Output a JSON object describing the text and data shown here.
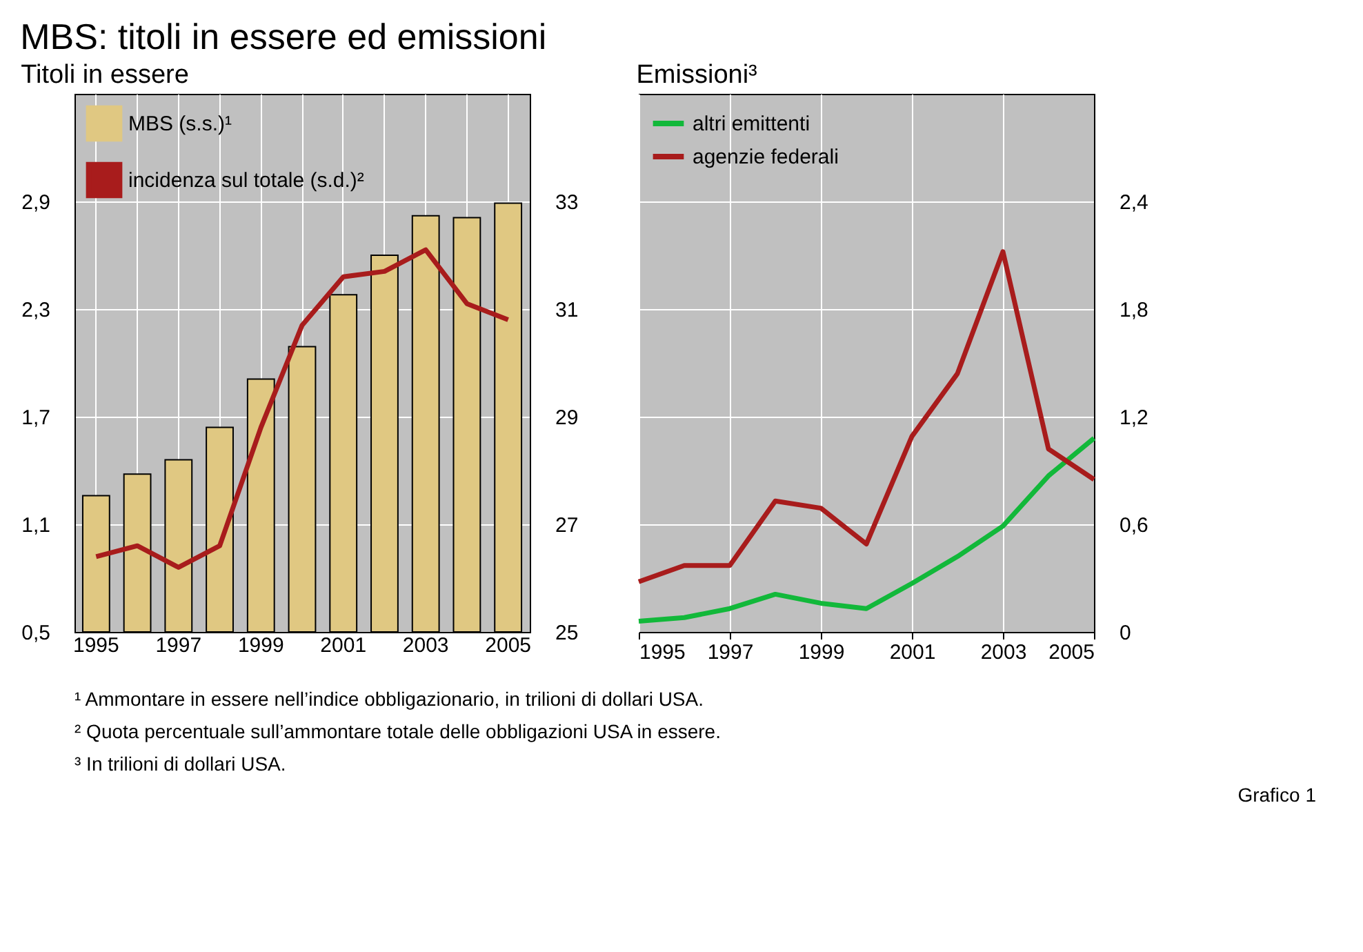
{
  "chart_data": [
    {
      "type": "bar",
      "title": "Titoli in essere",
      "categories": [
        "1995",
        null,
        "1997",
        null,
        "1999",
        null,
        "2001",
        null,
        "2003",
        null,
        "2005"
      ],
      "ylim": [
        0.5,
        3.5
      ],
      "yticks": [
        {
          "value": 0.5,
          "label": "0,5"
        },
        {
          "value": 1.1,
          "label": "1,1"
        },
        {
          "value": 1.7,
          "label": "1,7"
        },
        {
          "value": 2.3,
          "label": "2,3"
        },
        {
          "value": 2.9,
          "label": "2,9"
        }
      ],
      "y2lim": [
        25,
        35
      ],
      "y2ticks": [
        25,
        27,
        29,
        31,
        33
      ],
      "series": [
        {
          "name": "MBS (s.s.)¹",
          "color": "#e0c882",
          "values": [
            1.26,
            1.38,
            1.46,
            1.64,
            1.91,
            2.09,
            2.38,
            2.6,
            2.82,
            2.81,
            2.89
          ]
        },
        {
          "name": "incidenza sul totale (s.d.)²",
          "type": "line",
          "axis": "y2",
          "color": "#a81c1c",
          "values": [
            26.4,
            26.6,
            26.2,
            26.6,
            28.8,
            30.7,
            31.6,
            31.7,
            32.1,
            31.1,
            30.8
          ]
        }
      ],
      "grid": true,
      "legend": "top left"
    },
    {
      "type": "line",
      "title": "Emissioni³",
      "x": [
        1995,
        1996,
        1997,
        1998,
        1999,
        2000,
        2001,
        2002,
        2003,
        2004,
        2005
      ],
      "xlim": [
        1995,
        2005
      ],
      "xticks": [
        1995,
        1997,
        1999,
        2001,
        2003,
        2005
      ],
      "ylim": [
        0,
        3
      ],
      "yticks": [
        0,
        {
          "value": 0.6,
          "label": "0,6"
        },
        {
          "value": 1.2,
          "label": "1,2"
        },
        {
          "value": 1.8,
          "label": "1,8"
        },
        {
          "value": 2.4,
          "label": "2,4"
        }
      ],
      "series": [
        {
          "name": "altri emittenti",
          "color": "#12b83a",
          "values": [
            0.06,
            0.08,
            0.13,
            0.21,
            0.16,
            0.13,
            0.27,
            0.42,
            0.59,
            0.87,
            1.08
          ]
        },
        {
          "name": "agenzie federali",
          "color": "#a81c1c",
          "values": [
            0.28,
            0.37,
            0.37,
            0.73,
            0.69,
            0.49,
            1.09,
            1.44,
            2.12,
            1.02,
            0.85
          ]
        }
      ],
      "grid": true,
      "legend": "top left"
    },
    {
      "type": "other",
      "title": "MBS: titoli in essere ed emissioni",
      "annotations": [
        "¹ Ammontare in essere nell’indice obbligazionario, in trilioni di dollari USA.",
        "² Quota percentuale sull’ammontare totale delle obbligazioni USA in essere.",
        "³ In trilioni di dollari USA.",
        "Grafico 1"
      ]
    }
  ]
}
